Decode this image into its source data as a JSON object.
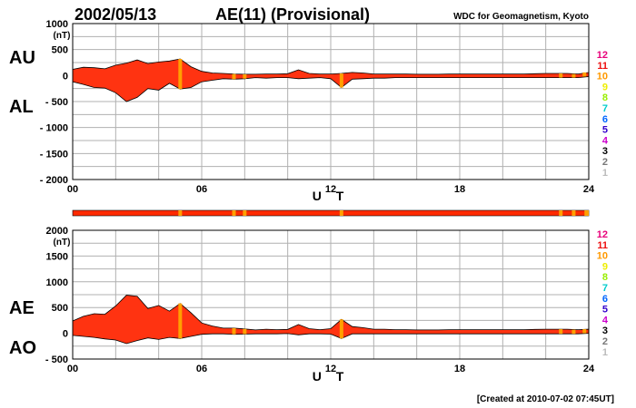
{
  "header": {
    "date": "2002/05/13",
    "title": "AE(11) (Provisional)",
    "source": "WDC for Geomagnetism, Kyoto"
  },
  "footer": {
    "created": "[Created at 2010-07-02 07:45UT]"
  },
  "colors": {
    "fill": "#ff3311",
    "highlight": "#ffa000",
    "grid": "#b0b0b0",
    "bar_base": "#ff2a00"
  },
  "legend": {
    "items": [
      {
        "label": "12",
        "color": "#e8007a"
      },
      {
        "label": "11",
        "color": "#ee1111"
      },
      {
        "label": "10",
        "color": "#ff9900"
      },
      {
        "label": "9",
        "color": "#eeee00"
      },
      {
        "label": "8",
        "color": "#99ee00"
      },
      {
        "label": "7",
        "color": "#00cccc"
      },
      {
        "label": "6",
        "color": "#0066ff"
      },
      {
        "label": "5",
        "color": "#3300cc"
      },
      {
        "label": "4",
        "color": "#cc00cc"
      },
      {
        "label": "3",
        "color": "#000000"
      },
      {
        "label": "2",
        "color": "#777777"
      },
      {
        "label": "1",
        "color": "#bbbbbb"
      }
    ]
  },
  "chart_data": [
    {
      "type": "area",
      "name": "AU/AL",
      "title": "AE(11) (Provisional)",
      "xlabel": "U T",
      "ylabel": "(nT)",
      "series_labels": [
        "AU",
        "AL"
      ],
      "xlim": [
        0,
        24
      ],
      "ylim": [
        -2000,
        1000
      ],
      "xticks": [
        "00",
        "06",
        "12",
        "18",
        "24"
      ],
      "yticks": [
        "1000",
        "500",
        "0",
        "- 500",
        "- 1000",
        "- 1500",
        "- 2000"
      ],
      "ytick_values": [
        1000,
        500,
        0,
        -500,
        -1000,
        -1500,
        -2000
      ],
      "grid": true,
      "hours": [
        0,
        0.5,
        1,
        1.5,
        2,
        2.5,
        3,
        3.5,
        4,
        4.5,
        5,
        5.5,
        6,
        6.5,
        7,
        7.5,
        8,
        8.5,
        9,
        9.5,
        10,
        10.5,
        11,
        11.5,
        12,
        12.5,
        13,
        13.5,
        14,
        14.5,
        15,
        15.5,
        16,
        16.5,
        17,
        17.5,
        18,
        18.5,
        19,
        19.5,
        20,
        20.5,
        21,
        21.5,
        22,
        22.5,
        23,
        23.5,
        24
      ],
      "upper": [
        120,
        160,
        150,
        130,
        200,
        240,
        300,
        230,
        260,
        280,
        320,
        170,
        80,
        50,
        40,
        30,
        25,
        25,
        30,
        30,
        35,
        110,
        40,
        30,
        30,
        40,
        60,
        50,
        30,
        30,
        30,
        30,
        25,
        25,
        25,
        30,
        30,
        30,
        30,
        30,
        30,
        30,
        30,
        35,
        40,
        40,
        40,
        30,
        60
      ],
      "lower": [
        -120,
        -170,
        -230,
        -240,
        -330,
        -500,
        -420,
        -250,
        -280,
        -150,
        -260,
        -230,
        -120,
        -90,
        -60,
        -70,
        -60,
        -40,
        -50,
        -40,
        -40,
        -60,
        -50,
        -40,
        -60,
        -230,
        -70,
        -60,
        -50,
        -50,
        -40,
        -40,
        -40,
        -40,
        -40,
        -40,
        -40,
        -40,
        -40,
        -40,
        -40,
        -40,
        -40,
        -40,
        -40,
        -40,
        -40,
        -40,
        -20
      ],
      "highlight_hours": [
        5.0,
        7.5,
        8.0,
        12.5,
        22.7,
        23.3,
        23.8
      ]
    },
    {
      "type": "area",
      "name": "AE/AO",
      "xlabel": "U T",
      "ylabel": "(nT)",
      "series_labels": [
        "AE",
        "AO"
      ],
      "xlim": [
        0,
        24
      ],
      "ylim": [
        -500,
        2000
      ],
      "xticks": [
        "00",
        "06",
        "12",
        "18",
        "24"
      ],
      "yticks": [
        "2000",
        "1500",
        "1000",
        "500",
        "0",
        "- 500"
      ],
      "ytick_values": [
        2000,
        1500,
        1000,
        500,
        0,
        -500
      ],
      "grid": true,
      "hours": [
        0,
        0.5,
        1,
        1.5,
        2,
        2.5,
        3,
        3.5,
        4,
        4.5,
        5,
        5.5,
        6,
        6.5,
        7,
        7.5,
        8,
        8.5,
        9,
        9.5,
        10,
        10.5,
        11,
        11.5,
        12,
        12.5,
        13,
        13.5,
        14,
        14.5,
        15,
        15.5,
        16,
        16.5,
        17,
        17.5,
        18,
        18.5,
        19,
        19.5,
        20,
        20.5,
        21,
        21.5,
        22,
        22.5,
        23,
        23.5,
        24
      ],
      "upper": [
        240,
        330,
        380,
        370,
        530,
        740,
        720,
        480,
        540,
        430,
        580,
        400,
        200,
        140,
        100,
        100,
        85,
        65,
        80,
        70,
        75,
        170,
        90,
        70,
        90,
        270,
        130,
        110,
        80,
        80,
        70,
        70,
        65,
        65,
        65,
        70,
        70,
        70,
        70,
        70,
        70,
        70,
        70,
        75,
        80,
        80,
        80,
        70,
        80
      ],
      "lower": [
        -40,
        -60,
        -80,
        -110,
        -130,
        -200,
        -140,
        -90,
        -120,
        -80,
        -100,
        -60,
        -20,
        -10,
        -10,
        -20,
        -15,
        -10,
        -10,
        -10,
        -5,
        -30,
        -10,
        -10,
        -15,
        -100,
        -10,
        -10,
        -10,
        -10,
        -10,
        -10,
        -10,
        -10,
        -10,
        -10,
        -10,
        -10,
        -10,
        -10,
        -10,
        -10,
        -10,
        -10,
        -10,
        -10,
        -10,
        -10,
        0
      ],
      "highlight_hours": [
        5.0,
        7.5,
        8.0,
        12.5,
        22.7,
        23.3,
        23.8
      ]
    }
  ],
  "activity_bar": {
    "highlight_hours": [
      5.0,
      7.5,
      8.0,
      12.5,
      22.7,
      23.3
    ],
    "end_hour": 23.8
  }
}
